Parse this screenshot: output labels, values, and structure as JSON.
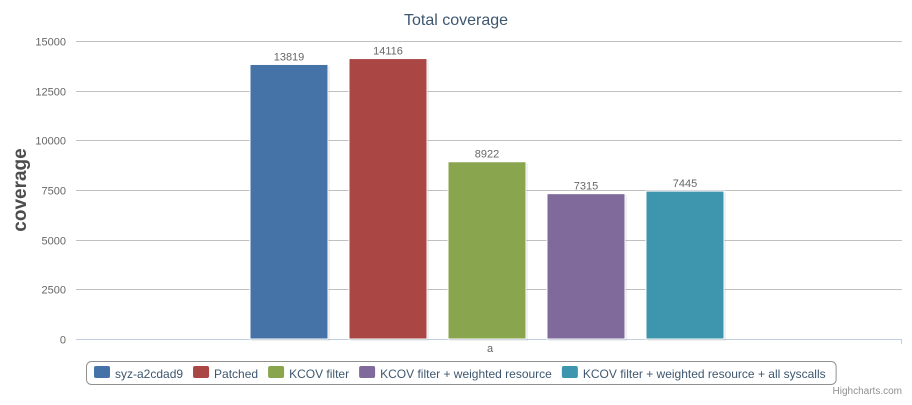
{
  "chart_data": {
    "type": "bar",
    "title": "Total coverage",
    "ylabel": "coverage",
    "categories": [
      "a"
    ],
    "ylim": [
      0,
      15000
    ],
    "yticks": [
      0,
      2500,
      5000,
      7500,
      10000,
      12500,
      15000
    ],
    "grid": true,
    "legend": "bottom",
    "series": [
      {
        "name": "syz-a2cdad9",
        "values": [
          13819
        ],
        "color": "#4572A7"
      },
      {
        "name": "Patched",
        "values": [
          14116
        ],
        "color": "#AA4643"
      },
      {
        "name": "KCOV filter",
        "values": [
          8922
        ],
        "color": "#89A54E"
      },
      {
        "name": "KCOV filter + weighted resource",
        "values": [
          7315
        ],
        "color": "#80699B"
      },
      {
        "name": "KCOV filter + weighted resource + all syscalls",
        "values": [
          7445
        ],
        "color": "#3D96AE"
      }
    ]
  },
  "credits": "Highcharts.com"
}
